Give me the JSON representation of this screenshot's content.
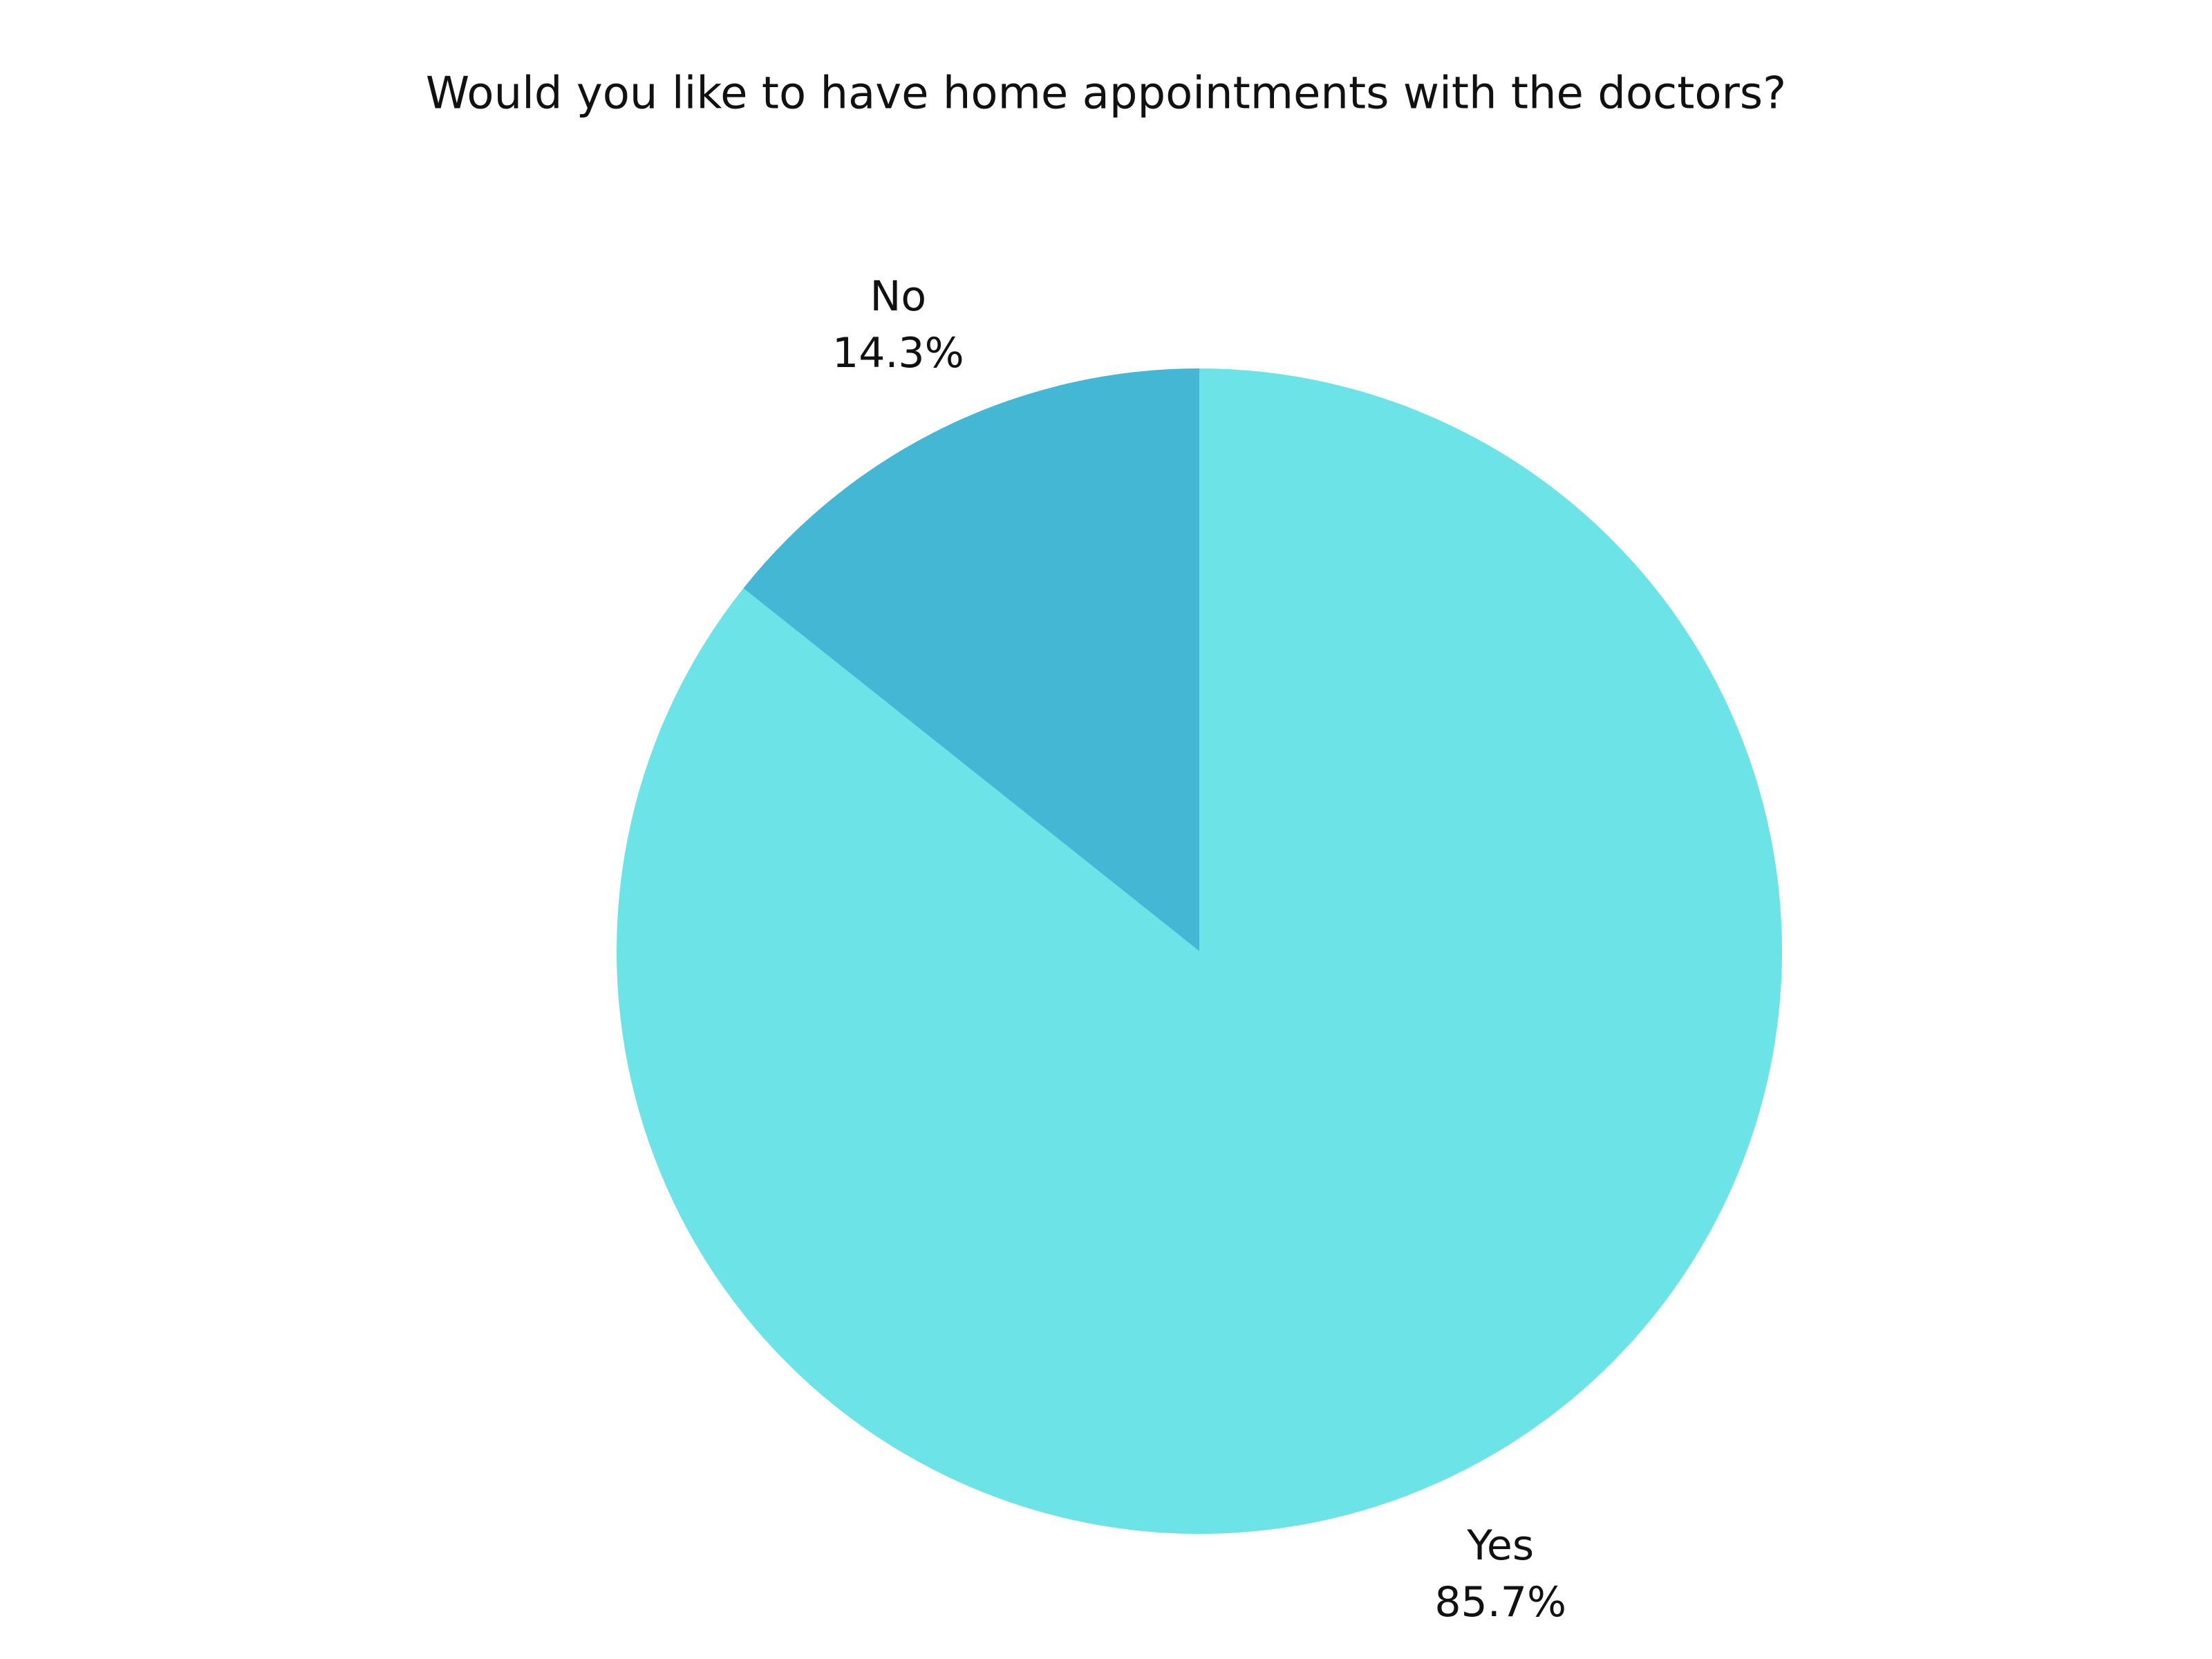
{
  "chart_data": {
    "type": "pie",
    "title": "Would you like to have home appointments with the doctors?",
    "categories": [
      "Yes",
      "No"
    ],
    "values": [
      85.7,
      14.3
    ],
    "value_labels": [
      "85.7%",
      "14.3%"
    ],
    "colors": [
      "#6ce4e7",
      "#44b7d5"
    ]
  }
}
